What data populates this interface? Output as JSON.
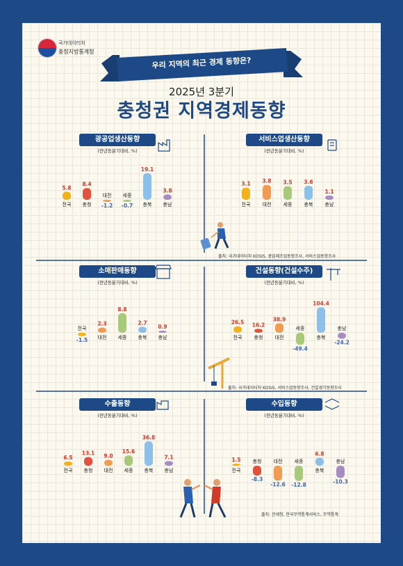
{
  "header": {
    "org_line1": "국가데이터처",
    "org_line2": "충청지방통계청",
    "banner": "우리 지역의 최근 경제 동향은?",
    "subtitle": "2025년 3분기",
    "title": "충청권 지역경제동향"
  },
  "colors": {
    "navy": "#1d4a86",
    "background": "#fbf8ef",
    "value_text": "#d23a2a",
    "neg_text": "#3a67b0"
  },
  "panels": [
    {
      "title": "광공업생산동향",
      "subtitle": "(전년동분기대비, %)",
      "icon": "factory-icon"
    },
    {
      "title": "서비스업생산동향",
      "subtitle": "(전년동분기대비, %)",
      "icon": "receipt-icon"
    },
    {
      "title": "소매판매동향",
      "subtitle": "(전년동분기대비, %)",
      "icon": "store-icon"
    },
    {
      "title": "건설동향(건설수주)",
      "subtitle": "(전년동분기대비, %)",
      "icon": "crane-icon"
    },
    {
      "title": "수출동향",
      "subtitle": "(전년동분기대비, %)",
      "icon": "export-icon"
    },
    {
      "title": "수입동향",
      "subtitle": "(전년동분기대비, %)",
      "icon": "import-icon"
    }
  ],
  "sources": [
    "출처: 국가데이터처 KOSIS, 광업제조업동향조사, 서비스업동향조사",
    "출처: 국가데이터처 KOSIS, 서비스업동향조사, 건설경기동향조사",
    "출처: 관세청, 한국무역통계서비스, 무역통계"
  ],
  "chart_data": [
    {
      "type": "bar",
      "title": "광공업생산동향",
      "categories": [
        "전국",
        "충청",
        "대전",
        "세종",
        "충북",
        "충남"
      ],
      "values": [
        5.8,
        8.4,
        -1.2,
        -0.7,
        19.1,
        3.8
      ]
    },
    {
      "type": "bar",
      "title": "서비스업생산동향",
      "categories": [
        "전국",
        "대전",
        "세종",
        "충북",
        "충남"
      ],
      "values": [
        3.1,
        3.8,
        3.5,
        3.6,
        1.1
      ]
    },
    {
      "type": "bar",
      "title": "소매판매동향",
      "categories": [
        "전국",
        "대전",
        "세종",
        "충북",
        "충남"
      ],
      "values": [
        -1.5,
        2.3,
        8.8,
        2.7,
        0.9
      ]
    },
    {
      "type": "bar",
      "title": "건설동향(건설수주)",
      "categories": [
        "전국",
        "충청",
        "대전",
        "세종",
        "충북",
        "충남"
      ],
      "values": [
        26.5,
        16.2,
        38.9,
        -49.4,
        104.4,
        -24.2
      ]
    },
    {
      "type": "bar",
      "title": "수출동향",
      "categories": [
        "전국",
        "충청",
        "대전",
        "세종",
        "충북",
        "충남"
      ],
      "values": [
        6.5,
        13.1,
        9.0,
        15.6,
        36.8,
        7.1
      ]
    },
    {
      "type": "bar",
      "title": "수입동향",
      "categories": [
        "전국",
        "충청",
        "대전",
        "세종",
        "충북",
        "충남"
      ],
      "values": [
        1.5,
        -8.3,
        -12.6,
        -12.8,
        6.8,
        -10.3
      ]
    }
  ]
}
